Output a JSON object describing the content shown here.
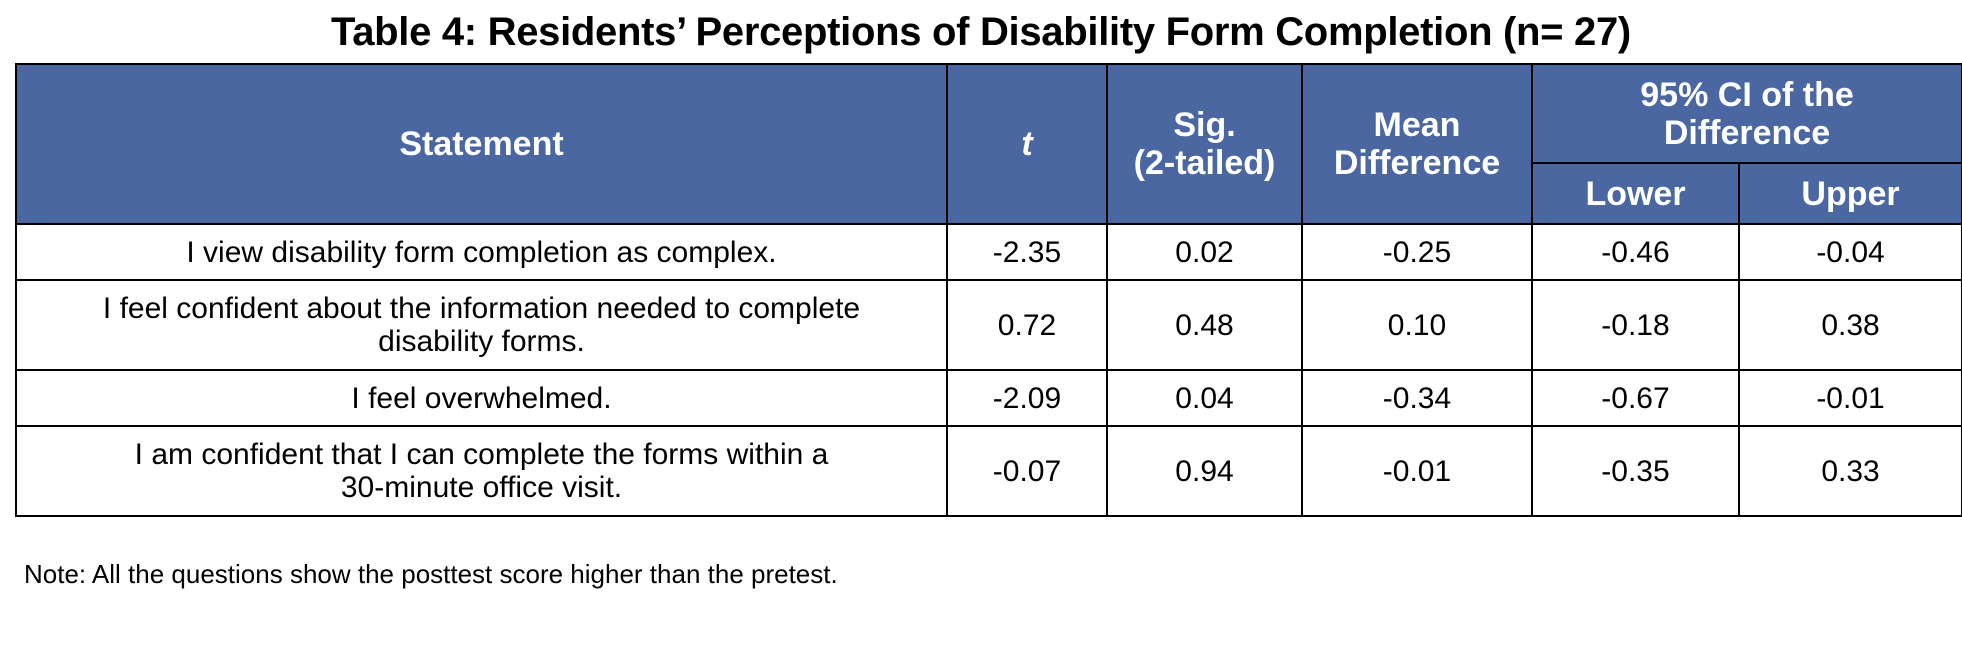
{
  "title": "Table 4: Residents’ Perceptions of Disability Form Completion (n= 27)",
  "colors": {
    "header_bg": "#4a67a2",
    "header_text": "#ffffff",
    "border": "#000000"
  },
  "table": {
    "headers": {
      "statement": "Statement",
      "t": "t",
      "sig_line1": "Sig.",
      "sig_line2": "(2-tailed)",
      "mean_line1": "Mean",
      "mean_line2": "Difference",
      "ci_line1": "95% CI of the",
      "ci_line2": "Difference",
      "lower": "Lower",
      "upper": "Upper"
    },
    "rows": [
      {
        "statement_line1": "I view disability form completion as complex.",
        "statement_line2": "",
        "t": "-2.35",
        "sig": "0.02",
        "mean_diff": "-0.25",
        "lower": "-0.46",
        "upper": "-0.04"
      },
      {
        "statement_line1": "I feel confident about the information needed to complete",
        "statement_line2": "disability forms.",
        "t": "0.72",
        "sig": "0.48",
        "mean_diff": "0.10",
        "lower": "-0.18",
        "upper": "0.38"
      },
      {
        "statement_line1": "I feel overwhelmed.",
        "statement_line2": "",
        "t": "-2.09",
        "sig": "0.04",
        "mean_diff": "-0.34",
        "lower": "-0.67",
        "upper": "-0.01"
      },
      {
        "statement_line1": "I am confident that I can complete the forms within a",
        "statement_line2": "30-minute office visit.",
        "t": "-0.07",
        "sig": "0.94",
        "mean_diff": "-0.01",
        "lower": "-0.35",
        "upper": "0.33"
      }
    ]
  },
  "note": "Note: All the questions show the posttest score higher than the pretest."
}
